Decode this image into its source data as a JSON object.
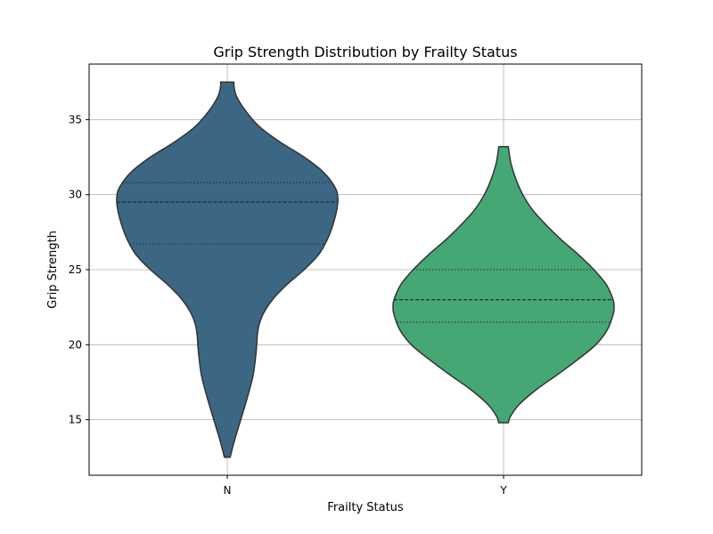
{
  "chart_data": {
    "type": "violin",
    "title": "Grip Strength Distribution by Frailty Status",
    "xlabel": "Frailty Status",
    "ylabel": "Grip Strength",
    "categories": [
      "N",
      "Y"
    ],
    "ylim": [
      11.3,
      38.7
    ],
    "yticks": [
      15,
      20,
      25,
      30,
      35
    ],
    "grid": true,
    "series": [
      {
        "category": "N",
        "color": "#3b6684",
        "min": 12.5,
        "max": 37.5,
        "quartiles": {
          "q1": 26.7,
          "median": 29.5,
          "q3": 30.8
        },
        "density_profile": [
          [
            12.5,
            0.03
          ],
          [
            13.5,
            0.07
          ],
          [
            15.0,
            0.14
          ],
          [
            16.5,
            0.21
          ],
          [
            18.0,
            0.27
          ],
          [
            19.5,
            0.3
          ],
          [
            21.0,
            0.32
          ],
          [
            22.0,
            0.37
          ],
          [
            23.0,
            0.47
          ],
          [
            24.0,
            0.62
          ],
          [
            25.0,
            0.8
          ],
          [
            26.0,
            0.95
          ],
          [
            27.0,
            1.04
          ],
          [
            28.0,
            1.1
          ],
          [
            29.0,
            1.14
          ],
          [
            29.8,
            1.15
          ],
          [
            30.5,
            1.12
          ],
          [
            31.5,
            1.0
          ],
          [
            32.5,
            0.8
          ],
          [
            33.5,
            0.55
          ],
          [
            34.5,
            0.34
          ],
          [
            35.5,
            0.2
          ],
          [
            36.5,
            0.1
          ],
          [
            37.2,
            0.07
          ],
          [
            37.5,
            0.07
          ]
        ]
      },
      {
        "category": "Y",
        "color": "#45a774",
        "min": 14.8,
        "max": 33.2,
        "quartiles": {
          "q1": 21.5,
          "median": 23.0,
          "q3": 25.0
        },
        "density_profile": [
          [
            14.8,
            0.05
          ],
          [
            15.2,
            0.07
          ],
          [
            16.0,
            0.16
          ],
          [
            17.0,
            0.34
          ],
          [
            18.0,
            0.56
          ],
          [
            19.0,
            0.77
          ],
          [
            20.0,
            0.96
          ],
          [
            21.0,
            1.08
          ],
          [
            22.0,
            1.14
          ],
          [
            22.5,
            1.15
          ],
          [
            23.0,
            1.14
          ],
          [
            24.0,
            1.07
          ],
          [
            25.0,
            0.94
          ],
          [
            26.0,
            0.78
          ],
          [
            27.0,
            0.6
          ],
          [
            28.0,
            0.44
          ],
          [
            29.0,
            0.3
          ],
          [
            30.0,
            0.2
          ],
          [
            31.0,
            0.13
          ],
          [
            32.0,
            0.08
          ],
          [
            32.7,
            0.06
          ],
          [
            33.2,
            0.05
          ]
        ]
      }
    ]
  }
}
